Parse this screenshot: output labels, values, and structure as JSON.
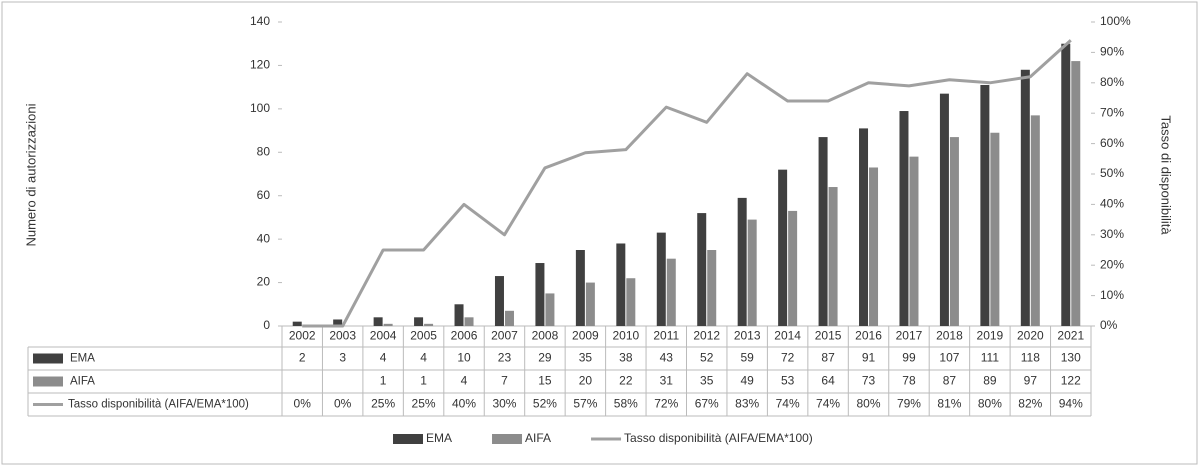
{
  "chart_data": {
    "type": "bar-line-table",
    "y_label": "Numero di autorizzazioni",
    "y2_label": "Tasso di disponibilità",
    "categories": [
      "2002",
      "2003",
      "2004",
      "2005",
      "2006",
      "2007",
      "2008",
      "2009",
      "2010",
      "2011",
      "2012",
      "2013",
      "2014",
      "2015",
      "2016",
      "2017",
      "2018",
      "2019",
      "2020",
      "2021"
    ],
    "series": [
      {
        "name": "EMA",
        "type": "bar",
        "color": "#404040",
        "values": [
          2,
          3,
          4,
          4,
          10,
          23,
          29,
          35,
          38,
          43,
          52,
          59,
          72,
          87,
          91,
          99,
          107,
          111,
          118,
          130
        ]
      },
      {
        "name": "AIFA",
        "type": "bar",
        "color": "#8c8c8c",
        "values": [
          null,
          null,
          1,
          1,
          4,
          7,
          15,
          20,
          22,
          31,
          35,
          49,
          53,
          64,
          73,
          78,
          87,
          89,
          97,
          122
        ]
      },
      {
        "name": "Tasso disponibilità (AIFA/EMA*100)",
        "type": "line",
        "axis": "y2",
        "color": "#a0a0a0",
        "values": [
          0,
          0,
          25,
          25,
          40,
          30,
          52,
          57,
          58,
          72,
          67,
          83,
          74,
          74,
          80,
          79,
          81,
          80,
          82,
          94
        ],
        "value_labels": [
          "0%",
          "0%",
          "25%",
          "25%",
          "40%",
          "30%",
          "52%",
          "57%",
          "58%",
          "72%",
          "67%",
          "83%",
          "74%",
          "74%",
          "80%",
          "79%",
          "81%",
          "80%",
          "82%",
          "94%"
        ]
      }
    ],
    "ylim": [
      0,
      140
    ],
    "yticks": [
      0,
      20,
      40,
      60,
      80,
      100,
      120,
      140
    ],
    "y2lim": [
      0,
      100
    ],
    "y2ticks": [
      {
        "value": 0,
        "label": "0%"
      },
      {
        "value": 10,
        "label": "10%"
      },
      {
        "value": 20,
        "label": "20%"
      },
      {
        "value": 30,
        "label": "30%"
      },
      {
        "value": 40,
        "label": "40%"
      },
      {
        "value": 50,
        "label": "50%"
      },
      {
        "value": 60,
        "label": "60%"
      },
      {
        "value": 70,
        "label": "70%"
      },
      {
        "value": 80,
        "label": "80%"
      },
      {
        "value": 90,
        "label": "90%"
      },
      {
        "value": 100,
        "label": "100%"
      }
    ],
    "grid": false,
    "legend": "bottom"
  }
}
